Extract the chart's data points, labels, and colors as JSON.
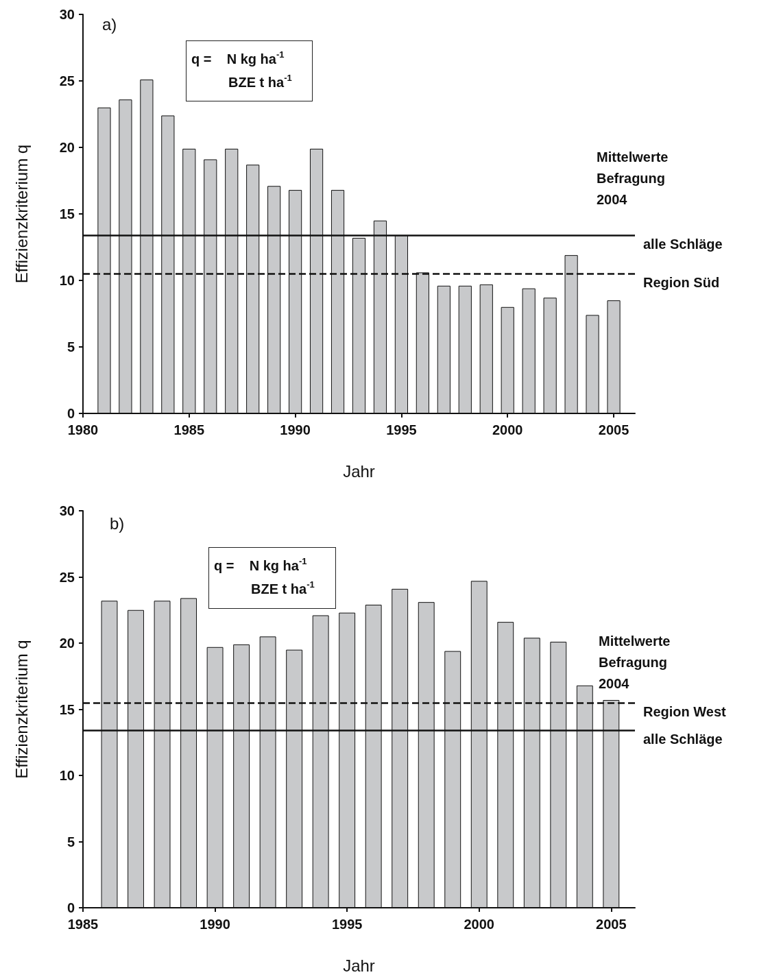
{
  "chart_data": [
    {
      "type": "bar",
      "x": [
        1981,
        1982,
        1983,
        1984,
        1985,
        1986,
        1987,
        1988,
        1989,
        1990,
        1991,
        1992,
        1993,
        1994,
        1995,
        1996,
        1997,
        1998,
        1999,
        2000,
        2001,
        2002,
        2003,
        2004,
        2005
      ],
      "values": [
        23.0,
        23.6,
        25.1,
        22.4,
        19.9,
        19.1,
        19.9,
        18.7,
        17.1,
        16.8,
        19.9,
        16.8,
        13.2,
        14.5,
        13.4,
        10.6,
        9.6,
        9.6,
        9.7,
        8.0,
        9.4,
        8.7,
        11.9,
        7.4,
        8.5
      ],
      "color": "#c8c9cb",
      "xlim": [
        1980,
        2006
      ],
      "xticks": [
        1980,
        1985,
        1990,
        1995,
        2000,
        2005
      ],
      "ylim": [
        0,
        30
      ],
      "yticks": [
        0,
        5,
        10,
        15,
        20,
        25,
        30
      ],
      "xlabel": "Jahr",
      "ylabel": "Effizienzkriterium q",
      "ref_lines": [
        {
          "axis": "y",
          "value": 13.4,
          "label": "alle Schläge",
          "line_style": "solid"
        },
        {
          "axis": "y",
          "value": 10.5,
          "label": "Region Süd",
          "line_style": "dashed"
        }
      ],
      "annotations": [
        "a)",
        "q =    N kg ha$^{-1}$",
        "BZE t ha$^{-1}$",
        "Mittelwerte\nBefragung\n2004"
      ]
    },
    {
      "type": "bar",
      "x": [
        1986,
        1987,
        1988,
        1989,
        1990,
        1991,
        1992,
        1993,
        1994,
        1995,
        1996,
        1997,
        1998,
        1999,
        2000,
        2001,
        2002,
        2003,
        2004,
        2005
      ],
      "values": [
        23.2,
        22.5,
        23.2,
        23.4,
        19.7,
        19.9,
        20.5,
        19.5,
        22.1,
        22.3,
        22.9,
        24.1,
        23.1,
        19.4,
        24.7,
        21.6,
        20.4,
        20.1,
        16.8,
        15.7
      ],
      "color": "#c8c9cb",
      "xlim": [
        1985,
        2005.9
      ],
      "xticks": [
        1985,
        1990,
        1995,
        2000,
        2005
      ],
      "ylim": [
        0,
        30
      ],
      "yticks": [
        0,
        5,
        10,
        15,
        20,
        25,
        30
      ],
      "xlabel": "Jahr",
      "ylabel": "Effizienzkriterium q",
      "ref_lines": [
        {
          "axis": "y",
          "value": 15.5,
          "label": "Region West",
          "line_style": "dashed"
        },
        {
          "axis": "y",
          "value": 13.4,
          "label": "alle Schläge",
          "line_style": "solid"
        }
      ],
      "annotations": [
        "b)",
        "q =    N kg ha$^{-1}$",
        "BZE t ha$^{-1}$",
        "Mittelwerte\nBefragung\n2004"
      ]
    }
  ]
}
